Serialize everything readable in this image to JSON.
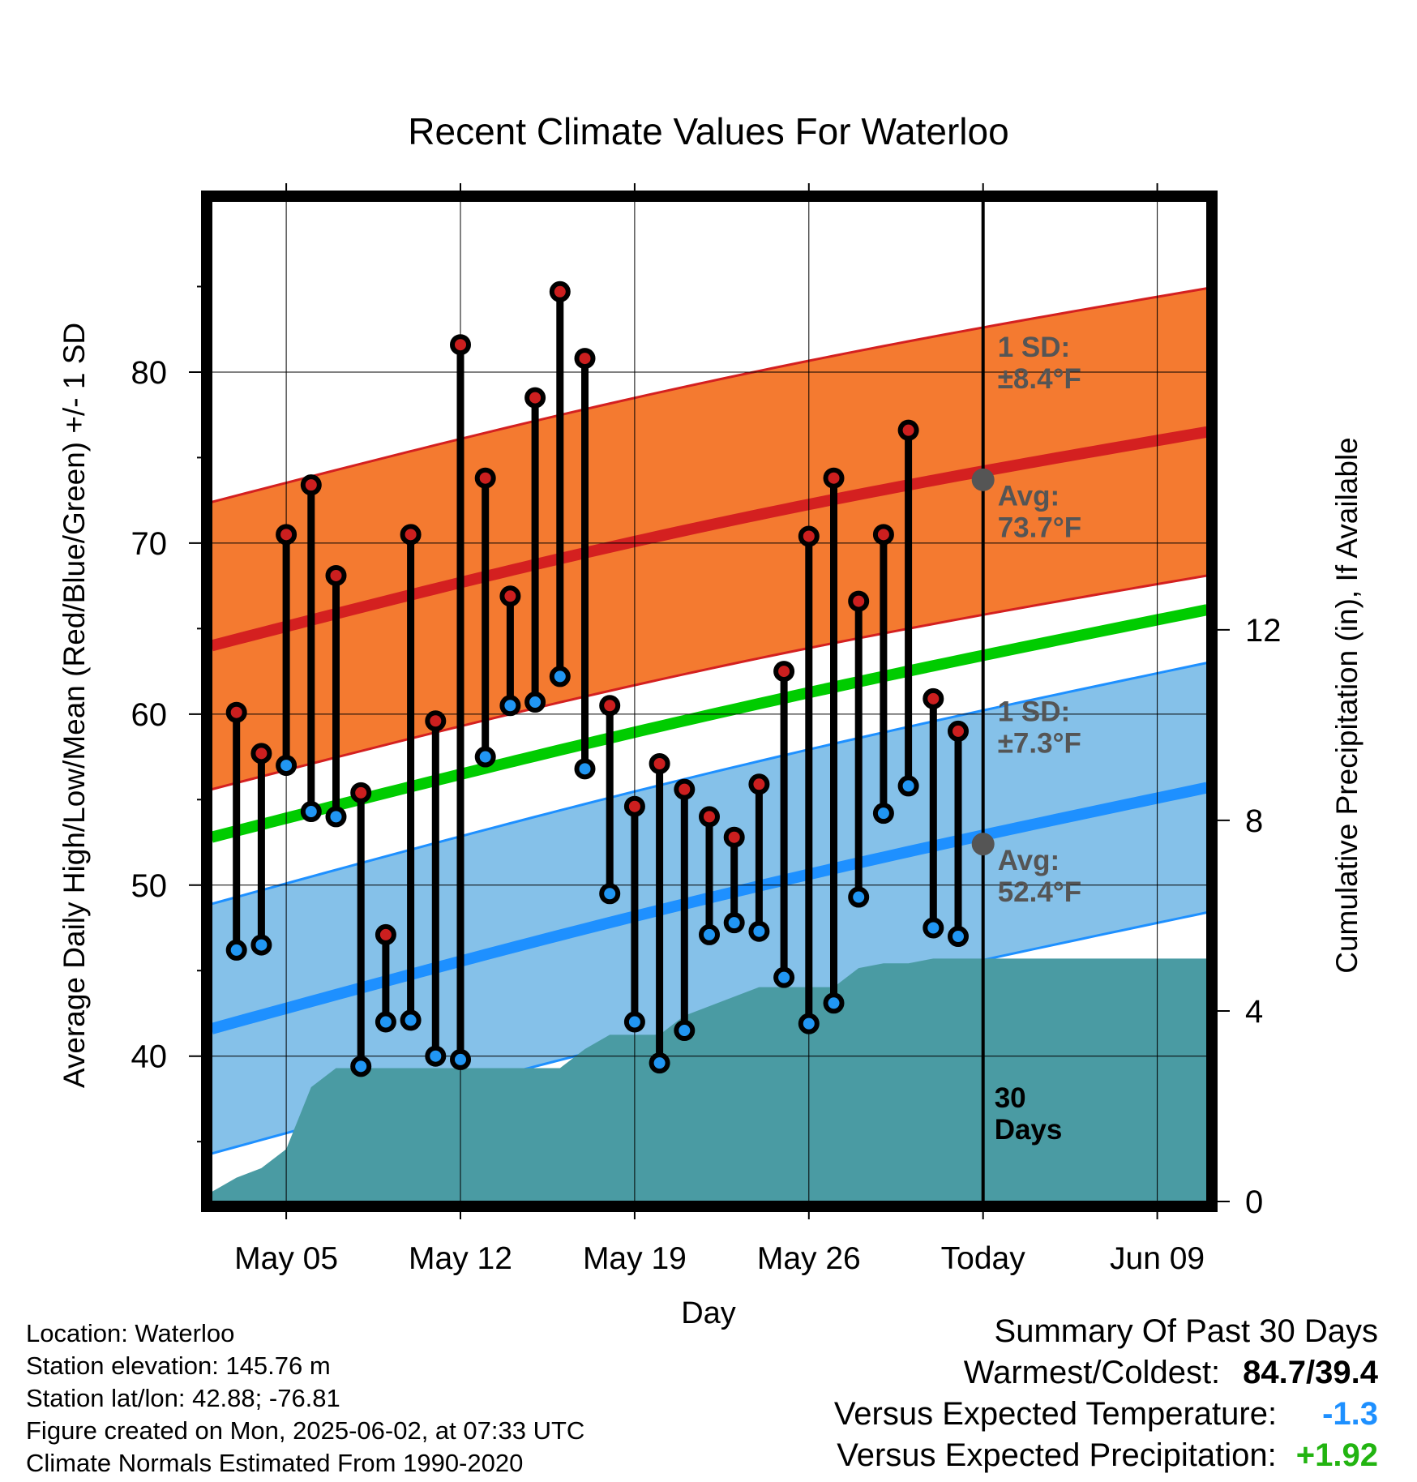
{
  "chart_data": {
    "type": "line",
    "title": "Recent Climate Values For Waterloo",
    "xlabel": "Day",
    "ylabel": "Average Daily High/Low/Mean (Red/Blue/Green) +/- 1 SD",
    "y2label": "Cumulative Precipitation (in), If Available",
    "ylim": [
      31.5,
      90
    ],
    "y2lim": [
      0,
      21
    ],
    "xlim": [
      "2025-05-02",
      "2025-06-11"
    ],
    "x_ticks": [
      "May 05",
      "May 12",
      "May 19",
      "May 26",
      "Today",
      "Jun 09"
    ],
    "x_tick_dates": [
      "2025-05-05",
      "2025-05-12",
      "2025-05-19",
      "2025-05-26",
      "2025-06-02",
      "2025-06-09"
    ],
    "y_ticks": [
      40,
      50,
      60,
      70,
      80
    ],
    "y2_ticks": [
      0,
      4,
      8,
      12
    ],
    "grid": true,
    "today": "2025-06-02",
    "today_label": "30\nDays",
    "normals": {
      "high": {
        "start": 64.0,
        "end": 76.5,
        "sd": 8.4
      },
      "low": {
        "start": 41.6,
        "end": 55.7,
        "sd": 7.3
      },
      "mean": {
        "start": 52.8,
        "end": 66.1
      }
    },
    "annotations": {
      "high_sd": "1 SD:\n±8.4°F",
      "high_avg": "Avg:\n73.7°F",
      "low_sd": "1 SD:\n±7.3°F",
      "low_avg": "Avg:\n52.4°F"
    },
    "markers": {
      "high_today": 73.7,
      "low_today": 52.4
    },
    "days": [
      "2025-05-03",
      "2025-05-04",
      "2025-05-05",
      "2025-05-06",
      "2025-05-07",
      "2025-05-08",
      "2025-05-09",
      "2025-05-10",
      "2025-05-11",
      "2025-05-12",
      "2025-05-13",
      "2025-05-14",
      "2025-05-15",
      "2025-05-16",
      "2025-05-17",
      "2025-05-18",
      "2025-05-19",
      "2025-05-20",
      "2025-05-21",
      "2025-05-22",
      "2025-05-23",
      "2025-05-24",
      "2025-05-25",
      "2025-05-26",
      "2025-05-27",
      "2025-05-28",
      "2025-05-29",
      "2025-05-30",
      "2025-05-31",
      "2025-06-01"
    ],
    "series": [
      {
        "name": "High",
        "values": [
          60.1,
          57.7,
          70.5,
          73.4,
          68.1,
          55.4,
          47.1,
          70.5,
          59.6,
          81.6,
          73.8,
          66.9,
          78.5,
          84.7,
          80.8,
          60.5,
          54.6,
          57.1,
          55.6,
          54.0,
          52.8,
          55.9,
          62.5,
          70.4,
          73.8,
          66.6,
          70.5,
          76.6,
          60.9,
          59.0
        ]
      },
      {
        "name": "Low",
        "values": [
          46.2,
          46.5,
          57.0,
          54.3,
          54.0,
          39.4,
          42.0,
          42.1,
          40.0,
          39.8,
          57.5,
          60.5,
          60.7,
          62.2,
          56.8,
          49.5,
          42.0,
          39.6,
          41.5,
          47.1,
          47.8,
          47.3,
          44.6,
          41.9,
          43.1,
          49.3,
          54.2,
          55.8,
          47.5,
          47.0
        ]
      }
    ],
    "precipitation": {
      "dates": [
        "2025-05-02",
        "2025-05-02",
        "2025-05-03",
        "2025-05-04",
        "2025-05-05",
        "2025-05-06",
        "2025-05-07",
        "2025-05-08",
        "2025-05-09",
        "2025-05-10",
        "2025-05-11",
        "2025-05-12",
        "2025-05-13",
        "2025-05-14",
        "2025-05-15",
        "2025-05-16",
        "2025-05-17",
        "2025-05-18",
        "2025-05-19",
        "2025-05-20",
        "2025-05-21",
        "2025-05-22",
        "2025-05-23",
        "2025-05-24",
        "2025-05-25",
        "2025-05-26",
        "2025-05-27",
        "2025-05-28",
        "2025-05-29",
        "2025-05-30",
        "2025-05-31",
        "2025-06-01",
        "2025-06-02",
        "2025-06-11"
      ],
      "cumulative": [
        0.0,
        0.2,
        0.5,
        0.7,
        1.1,
        2.4,
        2.8,
        2.8,
        2.8,
        2.8,
        2.8,
        2.8,
        2.8,
        2.8,
        2.8,
        2.8,
        3.2,
        3.5,
        3.5,
        3.5,
        3.9,
        4.1,
        4.3,
        4.5,
        4.5,
        4.5,
        4.5,
        4.9,
        5.0,
        5.0,
        5.1,
        5.1,
        5.1,
        5.1
      ]
    }
  },
  "footer": {
    "location": "Location: Waterloo",
    "elevation": "Station elevation: 145.76 m",
    "latlon": "Station lat/lon: 42.88; -76.81",
    "created": "Figure created on Mon, 2025-06-02, at 07:33 UTC",
    "normals": "Climate Normals Estimated From 1990-2020"
  },
  "summary": {
    "title": "Summary Of Past 30 Days",
    "warmest_label": "Warmest/Coldest:",
    "warmest_value": "84.7/39.4",
    "temp_label": "Versus Expected Temperature:",
    "temp_value": "-1.3",
    "precip_label": "Versus Expected Precipitation:",
    "precip_value": "+1.92"
  },
  "colors": {
    "high_band": "#f47a30",
    "high_line": "#d42020",
    "low_band": "#85c1e9",
    "low_line": "#1e90ff",
    "mean_line": "#00cc00",
    "precip": "#4a9ba3",
    "high_dot": "#cc1f1f",
    "low_dot": "#2196f3",
    "marker": "#555555",
    "annotation": "#555555",
    "temp_value": "#1e90ff",
    "precip_value": "#22b411"
  }
}
